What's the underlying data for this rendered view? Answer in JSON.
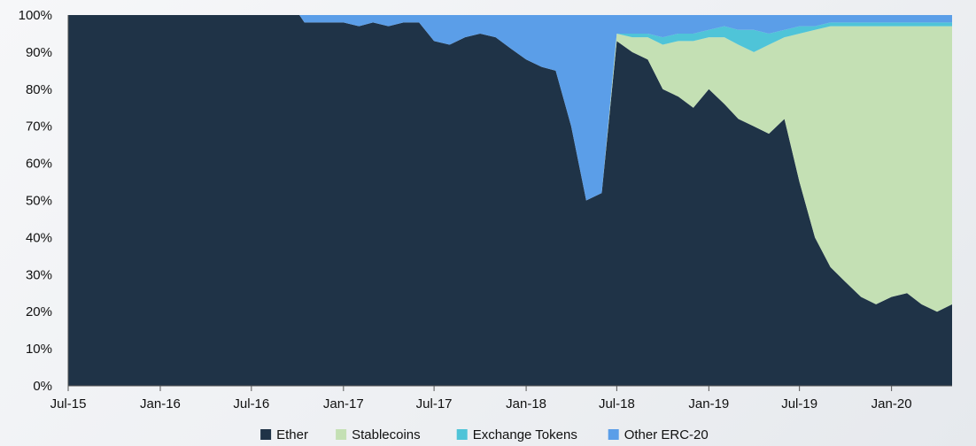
{
  "chart_data": {
    "type": "area",
    "stacked": true,
    "normalized": true,
    "x_ticks": [
      "Jul-15",
      "Jan-16",
      "Jul-16",
      "Jan-17",
      "Jul-17",
      "Jan-18",
      "Jul-18",
      "Jan-19",
      "Jul-19",
      "Jan-20"
    ],
    "y_ticks": [
      "0%",
      "10%",
      "20%",
      "30%",
      "40%",
      "50%",
      "60%",
      "70%",
      "80%",
      "90%",
      "100%"
    ],
    "ylim": [
      0,
      100
    ],
    "x_range": [
      "2015-07-01",
      "2020-05-01"
    ],
    "legend_position": "bottom",
    "grid": false,
    "x": [
      "2015-07-01",
      "2016-10-05",
      "2016-10-15",
      "2016-12-01",
      "2017-01-01",
      "2017-02-01",
      "2017-03-01",
      "2017-04-01",
      "2017-05-01",
      "2017-06-01",
      "2017-07-01",
      "2017-08-01",
      "2017-09-01",
      "2017-10-01",
      "2017-11-01",
      "2017-12-01",
      "2018-01-01",
      "2018-02-01",
      "2018-03-01",
      "2018-04-01",
      "2018-05-01",
      "2018-06-01",
      "2018-07-01",
      "2018-08-01",
      "2018-09-01",
      "2018-10-01",
      "2018-11-01",
      "2018-12-01",
      "2019-01-01",
      "2019-02-01",
      "2019-03-01",
      "2019-04-01",
      "2019-05-01",
      "2019-06-01",
      "2019-07-01",
      "2019-08-01",
      "2019-09-01",
      "2019-10-01",
      "2019-11-01",
      "2019-12-01",
      "2020-01-01",
      "2020-02-01",
      "2020-03-01",
      "2020-04-01",
      "2020-05-01"
    ],
    "series": [
      {
        "name": "Ether",
        "color": "#1f3347",
        "values": [
          100,
          100,
          98,
          98,
          98,
          97,
          98,
          97,
          98,
          98,
          93,
          92,
          94,
          95,
          94,
          91,
          88,
          86,
          85,
          70,
          50,
          52,
          93,
          90,
          88,
          80,
          78,
          75,
          80,
          76,
          72,
          70,
          68,
          72,
          55,
          40,
          32,
          28,
          24,
          22,
          24,
          25,
          22,
          20,
          22
        ]
      },
      {
        "name": "Stablecoins",
        "color": "#c4e0b4",
        "values": [
          0,
          0,
          0,
          0,
          0,
          0,
          0,
          0,
          0,
          0,
          0,
          0,
          0,
          0,
          0,
          0,
          0,
          0,
          0,
          0,
          0,
          0,
          2,
          4,
          6,
          12,
          15,
          18,
          14,
          18,
          20,
          20,
          24,
          22,
          40,
          56,
          65,
          69,
          73,
          75,
          73,
          72,
          75,
          77,
          75
        ]
      },
      {
        "name": "Exchange Tokens",
        "color": "#4fc4d8",
        "values": [
          0,
          0,
          0,
          0,
          0,
          0,
          0,
          0,
          0,
          0,
          0,
          0,
          0,
          0,
          0,
          0,
          0,
          0,
          0,
          0,
          0,
          0,
          0,
          1,
          1,
          2,
          2,
          2,
          2,
          3,
          4,
          6,
          3,
          2,
          2,
          1,
          1,
          1,
          1,
          1,
          1,
          1,
          1,
          1,
          1
        ]
      },
      {
        "name": "Other ERC-20",
        "color": "#5b9ee8",
        "values": [
          0,
          0,
          2,
          2,
          2,
          3,
          2,
          3,
          2,
          2,
          7,
          8,
          6,
          5,
          6,
          9,
          12,
          14,
          15,
          30,
          50,
          48,
          5,
          5,
          5,
          6,
          5,
          5,
          4,
          3,
          4,
          4,
          5,
          4,
          3,
          3,
          2,
          2,
          2,
          2,
          2,
          2,
          2,
          2,
          2
        ]
      }
    ]
  }
}
